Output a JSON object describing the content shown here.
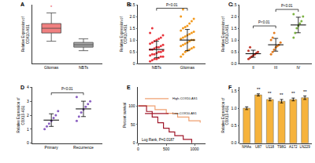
{
  "chart_data": [
    {
      "type": "box",
      "title": "A",
      "y_label": "Relative Expression of COX10-AS1",
      "categories": [
        "Gliomas",
        "NBTs"
      ],
      "groups": [
        {
          "category": "Gliomas",
          "color": "#f08080",
          "lower": 3.4,
          "q1": 4.1,
          "median": 4.5,
          "q3": 4.9,
          "upper": 5.8
        },
        {
          "category": "NBTs",
          "color": "#a6a6a6",
          "lower": 2.6,
          "q1": 2.9,
          "median": 3.1,
          "q3": 3.3,
          "upper": 3.6
        }
      ],
      "ylim": [
        1.5,
        6.5
      ],
      "tick_labels": "x",
      "grid": false,
      "annotations": [
        {
          "text": "*",
          "x": "Gliomas",
          "y": 6.0
        }
      ]
    },
    {
      "type": "scatter",
      "title": "B",
      "y_label": "Relative Expression of COX10-AS1",
      "categories": [
        "NBTs",
        "Gliomas"
      ],
      "groups": [
        {
          "category": "NBTs",
          "color": "#e8343c",
          "values": [
            0.1,
            0.15,
            0.2,
            0.2,
            0.25,
            0.3,
            0.3,
            0.35,
            0.4,
            0.4,
            0.45,
            0.5,
            0.5,
            0.55,
            0.6,
            0.6,
            0.65,
            0.7,
            0.7,
            0.75,
            0.8,
            0.85,
            0.9,
            0.95,
            1.0,
            1.05,
            1.1,
            1.2,
            1.3,
            1.5
          ],
          "mean": 0.6,
          "sd": 0.35
        },
        {
          "category": "Gliomas",
          "color": "#f39a1e",
          "values": [
            0.3,
            0.4,
            0.5,
            0.55,
            0.6,
            0.65,
            0.7,
            0.75,
            0.8,
            0.85,
            0.9,
            0.95,
            1.0,
            1.0,
            1.05,
            1.1,
            1.15,
            1.2,
            1.25,
            1.3,
            1.35,
            1.4,
            1.5,
            1.55,
            1.6,
            1.7,
            1.8,
            1.9,
            2.0,
            2.3
          ],
          "mean": 1.0,
          "sd": 0.45
        }
      ],
      "ylim": [
        0,
        2.5
      ],
      "yticks": [
        0,
        0.5,
        {
          "value": 1,
          "label": "1.0"
        },
        1.5,
        {
          "value": 2,
          "label": "2.0"
        },
        2.5
      ],
      "grid": false,
      "marker": "circle",
      "annotations": [
        {
          "text": "P<0.01",
          "x": [
            "NBTs",
            "Gliomas"
          ],
          "y": 2.35
        }
      ]
    },
    {
      "type": "scatter",
      "title": "C",
      "y_label": "Relative Expression of COX10-AS1",
      "categories": [
        "II",
        "III",
        "IV"
      ],
      "groups": [
        {
          "category": "II",
          "color": "#c0392b",
          "values": [
            0.2,
            0.25,
            0.3,
            0.35,
            0.4,
            0.45,
            0.5,
            0.55,
            0.7
          ],
          "mean": 0.42,
          "sd": 0.15
        },
        {
          "category": "III",
          "color": "#e67e22",
          "values": [
            0.4,
            0.5,
            0.6,
            0.7,
            0.75,
            0.8,
            0.9,
            1.0,
            1.1,
            1.3
          ],
          "mean": 0.8,
          "sd": 0.27
        },
        {
          "category": "IV",
          "color": "#7cb342",
          "values": [
            1.1,
            1.3,
            1.5,
            1.6,
            1.7,
            1.8,
            2.0,
            2.1
          ],
          "mean": 1.64,
          "sd": 0.33
        }
      ],
      "ylim": [
        0,
        2.5
      ],
      "yticks": [
        {
          "value": 0,
          "label": "0.0"
        },
        0.5,
        {
          "value": 1,
          "label": "1.0"
        },
        1.5,
        {
          "value": 2,
          "label": "2.0"
        },
        2.5
      ],
      "grid": false,
      "marker": "circle",
      "annotations": [
        {
          "text": "P<0.01",
          "x": [
            "II",
            "III"
          ],
          "y": 1.6
        },
        {
          "text": "P<0.01",
          "x": [
            "III",
            "IV"
          ],
          "y": 2.3
        }
      ]
    },
    {
      "type": "scatter",
      "title": "D",
      "y_label": "Relative Expression of COX10-AS1",
      "categories": [
        "Primary",
        "Recurrence"
      ],
      "groups": [
        {
          "category": "Primary",
          "color": "#8a5fc1",
          "values": [
            1.0,
            1.2,
            1.4,
            1.6,
            1.8,
            2.0,
            2.3
          ],
          "mean": 1.65,
          "sd": 0.45
        },
        {
          "category": "Recurrence",
          "color": "#8a5fc1",
          "values": [
            1.6,
            1.9,
            2.2,
            2.4,
            2.6,
            2.8,
            3.0,
            3.3
          ],
          "mean": 2.45,
          "sd": 0.55
        }
      ],
      "ylim": [
        0,
        4
      ],
      "yticks": [
        0,
        1,
        2,
        3,
        4
      ],
      "grid": false,
      "marker": "circle",
      "annotations": [
        {
          "text": "P<0.01",
          "x": [
            "Primary",
            "Recurrence"
          ],
          "y": 3.6
        }
      ]
    },
    {
      "type": "line",
      "title": "E",
      "y_label": "Percent survival",
      "series": [
        {
          "name": "High-COX10-AS1",
          "color": "#f0a070",
          "x": [
            0,
            300,
            500,
            700,
            900,
            1100
          ],
          "values": [
            100,
            90,
            80,
            70,
            60,
            55
          ]
        },
        {
          "name": "Low-COX10-AS1",
          "color": "#a0182a",
          "x": [
            0,
            150,
            250,
            350,
            450,
            550,
            650,
            800,
            950
          ],
          "values": [
            100,
            85,
            70,
            55,
            40,
            30,
            20,
            10,
            0
          ]
        }
      ],
      "xlim": [
        0,
        1200
      ],
      "xticks": [
        0,
        500,
        1000
      ],
      "ylim": [
        0,
        150
      ],
      "yticks": [
        0,
        50,
        100
      ],
      "grid": false,
      "line_style": "step",
      "legend": "top left",
      "annotations": [
        {
          "text": "Log Rank, P=0.0187",
          "x": 40,
          "y": 8
        }
      ]
    },
    {
      "type": "bar",
      "title": "F",
      "y_label": "Relative Expression of COX10-AS1",
      "categories": [
        "NHAs",
        "U87",
        "U118",
        "T98G",
        "A172",
        "LN229"
      ],
      "values": [
        1.0,
        1.38,
        1.25,
        1.2,
        1.25,
        1.3
      ],
      "errors": [
        0.04,
        0.03,
        0.04,
        0.05,
        0.04,
        0.05
      ],
      "color": "#f6b33c",
      "ylim": [
        0,
        1.6
      ],
      "yticks": [
        {
          "value": 0,
          "label": "0.0"
        },
        0.5,
        {
          "value": 1,
          "label": "1.0"
        },
        1.5
      ],
      "grid": false,
      "annotations": [
        {
          "text": "**",
          "x": "U87",
          "y": 1.43
        },
        {
          "text": "**",
          "x": "U118",
          "y": 1.31
        },
        {
          "text": "**",
          "x": "T98G",
          "y": 1.27
        },
        {
          "text": "**",
          "x": "A172",
          "y": 1.31
        },
        {
          "text": "**",
          "x": "LN229",
          "y": 1.37
        }
      ]
    }
  ]
}
